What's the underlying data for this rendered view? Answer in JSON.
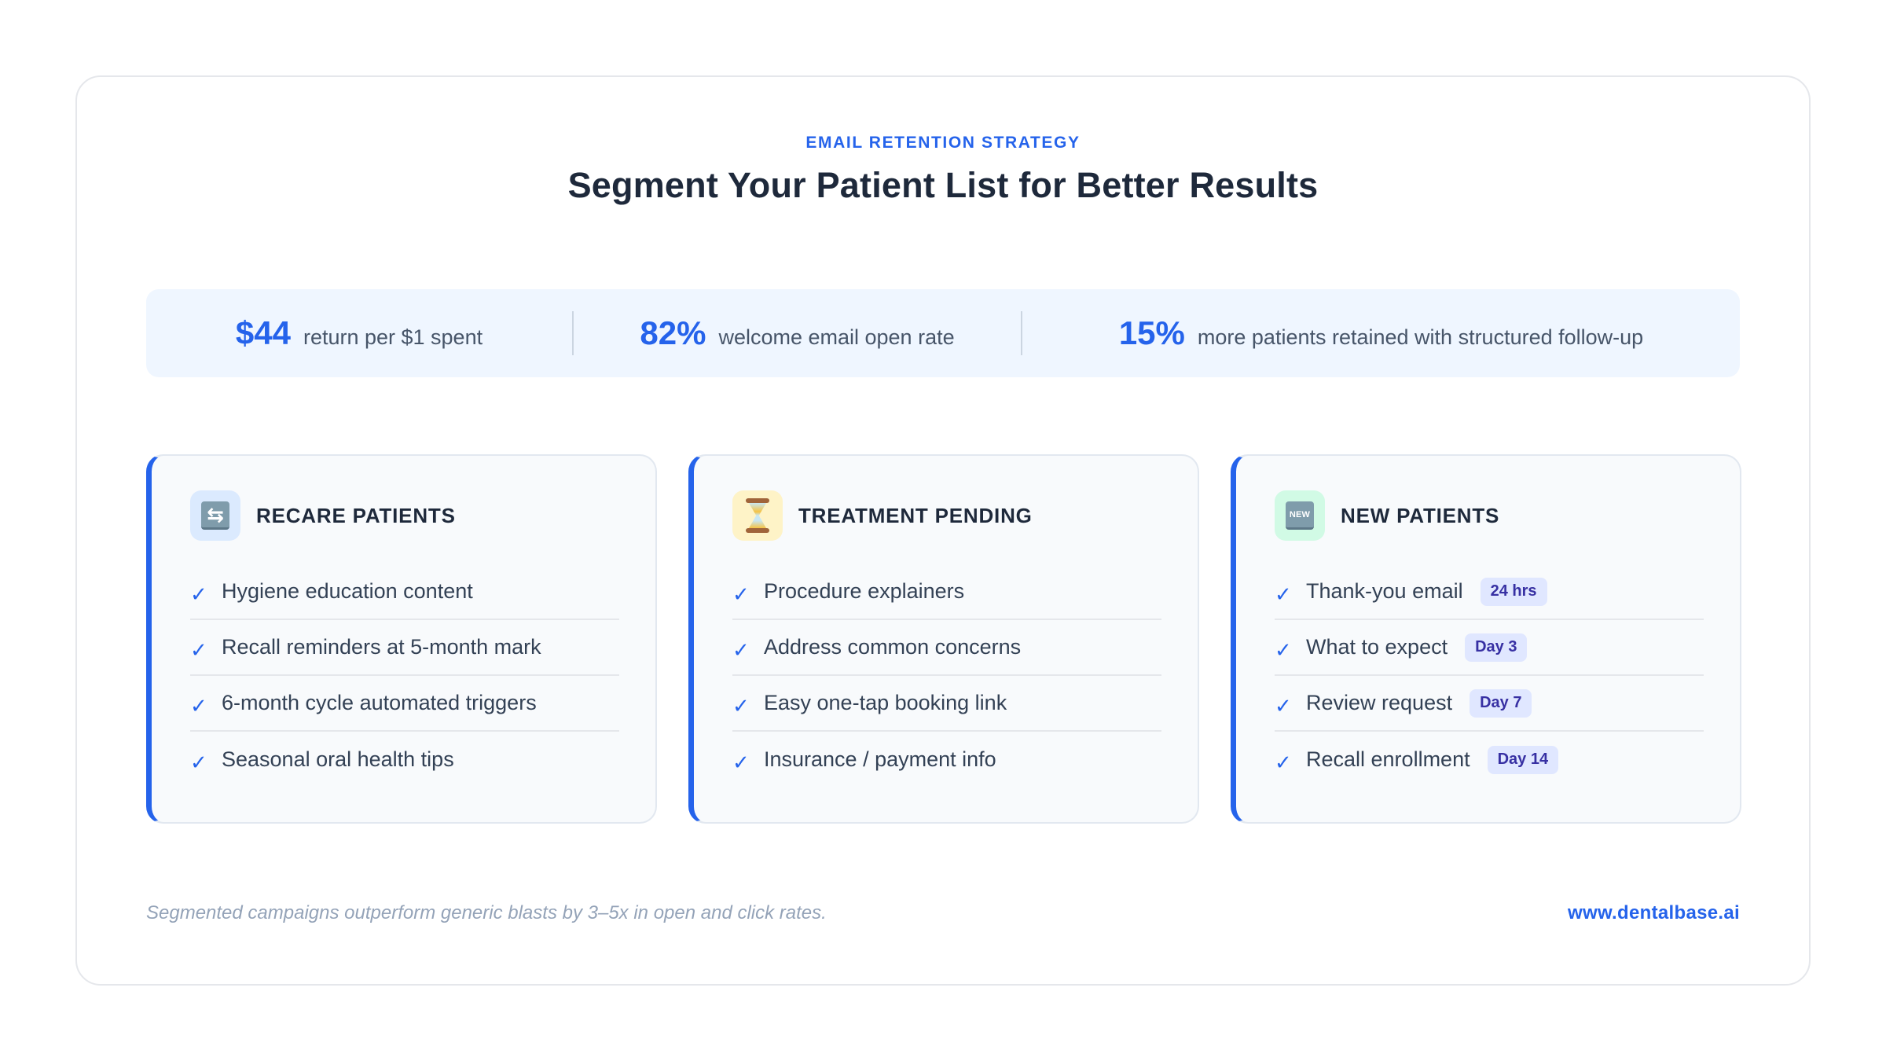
{
  "header": {
    "eyebrow": "EMAIL RETENTION STRATEGY",
    "title": "Segment Your Patient List for Better Results"
  },
  "stats": [
    {
      "value": "$44",
      "label": "return per $1 spent"
    },
    {
      "value": "82%",
      "label": "welcome email open rate"
    },
    {
      "value": "15%",
      "label": "more patients retained with structured follow-up"
    }
  ],
  "cards": [
    {
      "title": "RECARE PATIENTS",
      "icon": "repeat-icon",
      "icon_glyph": "⇆",
      "items": [
        {
          "text": "Hygiene education content"
        },
        {
          "text": "Recall reminders at 5-month mark"
        },
        {
          "text": "6-month cycle automated triggers"
        },
        {
          "text": "Seasonal oral health tips"
        }
      ]
    },
    {
      "title": "TREATMENT PENDING",
      "icon": "hourglass-icon",
      "items": [
        {
          "text": "Procedure explainers"
        },
        {
          "text": "Address common concerns"
        },
        {
          "text": "Easy one-tap booking link"
        },
        {
          "text": "Insurance / payment info"
        }
      ]
    },
    {
      "title": "NEW PATIENTS",
      "icon": "new-badge-icon",
      "icon_glyph": "NEW",
      "items": [
        {
          "text": "Thank-you email",
          "badge": "24 hrs"
        },
        {
          "text": "What to expect",
          "badge": "Day 3"
        },
        {
          "text": "Review request",
          "badge": "Day 7"
        },
        {
          "text": "Recall enrollment",
          "badge": "Day 14"
        }
      ]
    }
  ],
  "check_glyph": "✓",
  "footer": {
    "note": "Segmented campaigns outperform generic blasts by 3–5x in open and click rates.",
    "link": "www.dentalbase.ai"
  },
  "colors": {
    "accent": "#2563eb",
    "heading": "#1e293b",
    "body_text": "#334155",
    "muted": "#94a3b8",
    "stats_bg": "#eff6ff",
    "card_bg": "#f8fafc",
    "badge_bg": "#e0e7ff",
    "badge_text": "#3730a3"
  }
}
